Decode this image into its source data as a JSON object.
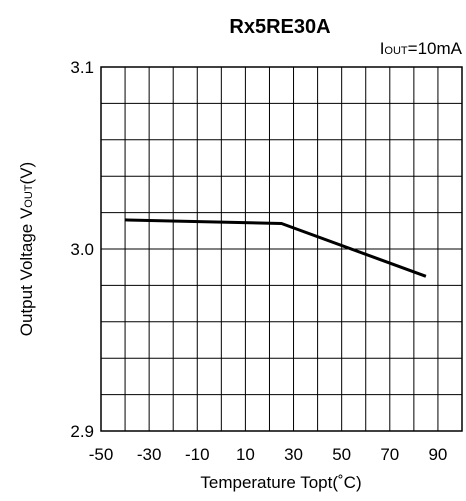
{
  "chart_data": {
    "type": "line",
    "title": "Rx5RE30A",
    "condition": {
      "prefix": "I",
      "subscript": "OUT",
      "suffix": "=10mA"
    },
    "xlabel": "Temperature Topt(˚C)",
    "ylabel": {
      "prefix": "Output Voltage V",
      "subscript": "OUT",
      "suffix": "(V)"
    },
    "xlim": [
      -50,
      100
    ],
    "ylim": [
      2.9,
      3.1
    ],
    "x_ticks": [
      -50,
      -30,
      -10,
      10,
      30,
      50,
      70,
      90
    ],
    "x_tick_labels": [
      "-50",
      "-30",
      "-10",
      "10",
      "30",
      "50",
      "70",
      "90"
    ],
    "y_ticks": [
      2.9,
      3.0,
      3.1
    ],
    "y_tick_labels": [
      "2.9",
      "3.0",
      "3.1"
    ],
    "x_grid_step": 10,
    "y_grid_step": 0.02,
    "grid": true,
    "series": [
      {
        "x": [
          -40,
          25,
          85
        ],
        "y": [
          3.016,
          3.014,
          2.985
        ]
      }
    ]
  }
}
